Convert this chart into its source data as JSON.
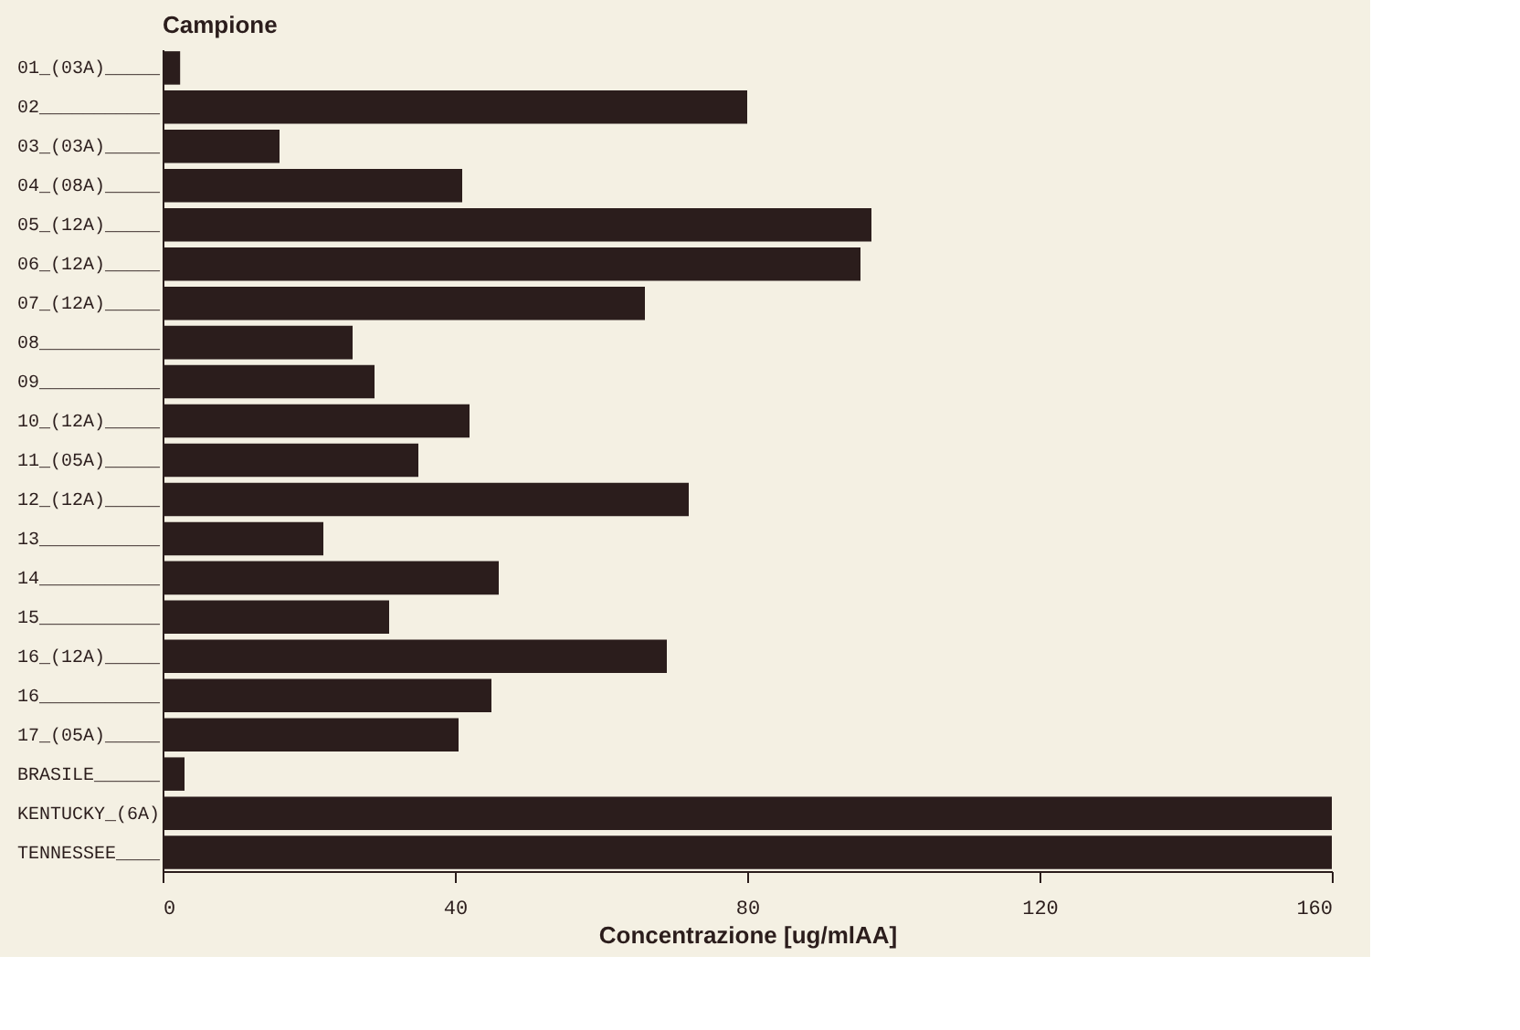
{
  "chart_data": {
    "type": "bar",
    "orientation": "horizontal",
    "ylabel": "Campione",
    "xlabel": "Concentrazione [ug/mlAA]",
    "categories": [
      "01_(03A)_____",
      "02___________",
      "03_(03A)_____",
      "04_(08A)_____",
      "05_(12A)_____",
      "06_(12A)_____",
      "07_(12A)_____",
      "08___________",
      "09___________",
      "10_(12A)_____",
      "11_(05A)_____",
      "12_(12A)_____",
      "13___________",
      "14___________",
      "15___________",
      "16_(12A)_____",
      "16___________",
      "17_(05A)_____",
      "BRASILE______",
      "KENTUCKY_(6A)",
      "TENNESSEE____"
    ],
    "values": [
      2.4,
      80,
      16,
      41,
      97,
      95.5,
      66,
      26,
      29,
      42,
      35,
      72,
      22,
      46,
      31,
      69,
      45,
      40.5,
      3,
      160,
      160
    ],
    "color": "#2b1d1c",
    "xlim": [
      0,
      160
    ],
    "xticks": [
      0,
      40,
      80,
      120,
      160
    ],
    "grid": false
  }
}
